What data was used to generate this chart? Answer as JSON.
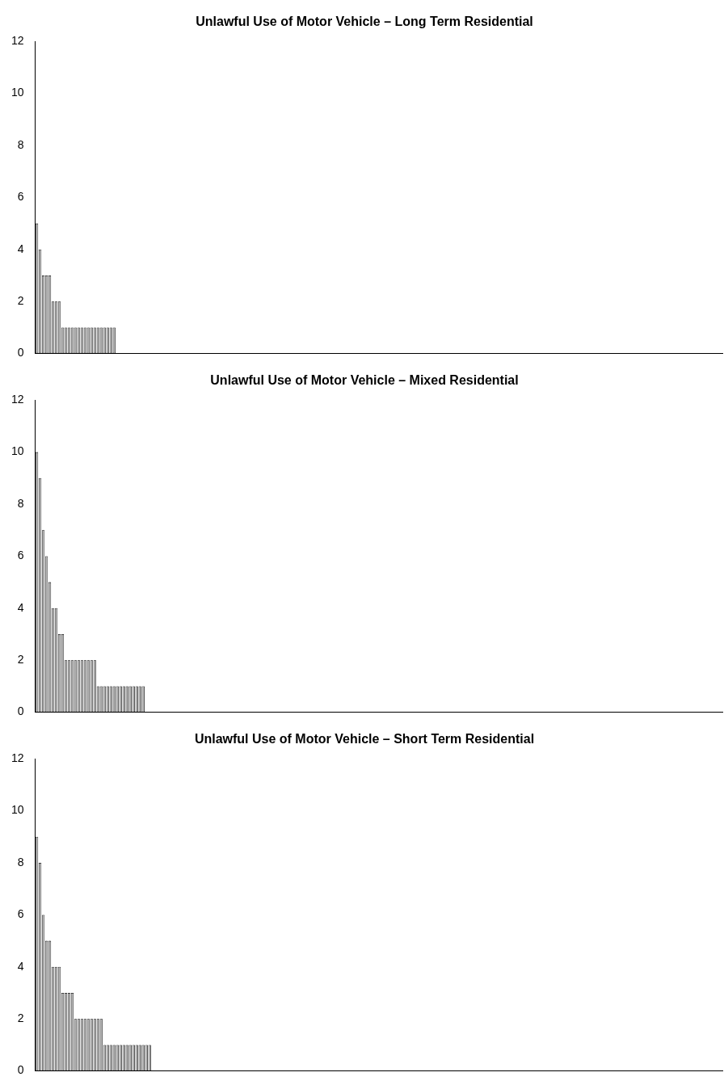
{
  "chart_data": [
    {
      "type": "bar",
      "title": "Unlawful Use of Motor Vehicle – Long Term Residential",
      "color": "#bebebe",
      "ylim": [
        0,
        12
      ],
      "yticks": [
        0,
        2,
        4,
        6,
        8,
        10,
        12
      ],
      "grid": false,
      "legend": false,
      "tick_labels": "y",
      "categories": [
        null,
        null,
        null,
        null,
        null,
        null,
        null,
        null,
        null,
        null,
        null,
        null,
        null,
        null,
        null,
        null,
        null,
        null,
        null,
        null,
        null,
        null,
        null,
        null,
        null,
        null,
        null,
        null,
        null,
        null,
        null,
        null,
        null,
        null,
        null,
        null,
        null,
        null,
        null,
        null,
        null,
        null,
        null,
        null,
        null,
        null,
        null,
        null,
        null,
        null,
        null,
        null,
        null,
        null,
        null,
        null,
        null,
        null,
        null,
        null,
        null,
        null,
        null,
        null,
        null,
        null,
        null,
        null,
        null,
        null,
        null,
        null,
        null,
        null,
        null,
        null,
        null,
        null,
        null,
        null,
        null,
        null,
        null,
        null,
        null,
        null,
        null,
        null,
        null,
        null,
        null,
        null,
        null,
        null,
        null,
        null,
        null,
        null,
        null,
        null,
        null,
        null,
        null,
        null,
        null,
        null,
        null,
        null,
        null,
        null,
        null,
        null,
        null,
        null,
        null,
        null,
        null,
        null,
        null,
        null,
        null,
        null,
        null,
        null,
        null,
        null,
        null,
        null,
        null,
        null,
        null,
        null,
        null,
        null,
        null,
        null,
        null,
        null,
        null,
        null,
        null,
        null,
        null,
        null,
        null,
        null,
        null,
        null,
        null,
        null,
        null,
        null,
        null,
        null,
        null,
        null,
        null,
        null,
        null,
        null,
        null,
        null,
        null,
        null,
        null,
        null,
        null,
        null,
        null,
        null,
        null,
        null,
        null,
        null,
        null,
        null,
        null,
        null,
        null,
        null,
        null,
        null,
        null,
        null,
        null,
        null,
        null,
        null,
        null,
        null,
        null,
        null,
        null,
        null,
        null,
        null,
        null,
        null,
        null,
        null,
        null,
        null,
        null,
        null,
        null,
        null,
        null,
        null,
        null,
        null,
        null,
        null,
        null
      ],
      "values": [
        5,
        4,
        3,
        3,
        3,
        2,
        2,
        2,
        1,
        1,
        1,
        1,
        1,
        1,
        1,
        1,
        1,
        1,
        1,
        1,
        1,
        1,
        1,
        1,
        1,
        0,
        0,
        0,
        0,
        0,
        0,
        0,
        0,
        0,
        0,
        0,
        0,
        0,
        0,
        0,
        0,
        0,
        0,
        0,
        0,
        0,
        0,
        0,
        0,
        0,
        0,
        0,
        0,
        0,
        0,
        0,
        0,
        0,
        0,
        0,
        0,
        0,
        0,
        0,
        0,
        0,
        0,
        0,
        0,
        0,
        0,
        0,
        0,
        0,
        0,
        0,
        0,
        0,
        0,
        0,
        0,
        0,
        0,
        0,
        0,
        0,
        0,
        0,
        0,
        0,
        0,
        0,
        0,
        0,
        0,
        0,
        0,
        0,
        0,
        0,
        0,
        0,
        0,
        0,
        0,
        0,
        0,
        0,
        0,
        0,
        0,
        0,
        0,
        0,
        0,
        0,
        0,
        0,
        0,
        0,
        0,
        0,
        0,
        0,
        0,
        0,
        0,
        0,
        0,
        0,
        0,
        0,
        0,
        0,
        0,
        0,
        0,
        0,
        0,
        0,
        0,
        0,
        0,
        0,
        0,
        0,
        0,
        0,
        0,
        0,
        0,
        0,
        0,
        0,
        0,
        0,
        0,
        0,
        0,
        0,
        0,
        0,
        0,
        0,
        0,
        0,
        0,
        0,
        0,
        0,
        0,
        0,
        0,
        0,
        0,
        0,
        0,
        0,
        0,
        0,
        0,
        0,
        0,
        0,
        0,
        0,
        0,
        0,
        0,
        0,
        0,
        0,
        0,
        0,
        0,
        0,
        0,
        0,
        0,
        0,
        0,
        0,
        0,
        0,
        0,
        0,
        0,
        0,
        0,
        0,
        0,
        0,
        0
      ]
    },
    {
      "type": "bar",
      "title": "Unlawful Use of Motor Vehicle – Mixed Residential",
      "color": "#bebebe",
      "ylim": [
        0,
        12
      ],
      "yticks": [
        0,
        2,
        4,
        6,
        8,
        10,
        12
      ],
      "grid": false,
      "legend": false,
      "tick_labels": "y",
      "categories": [
        null,
        null,
        null,
        null,
        null,
        null,
        null,
        null,
        null,
        null,
        null,
        null,
        null,
        null,
        null,
        null,
        null,
        null,
        null,
        null,
        null,
        null,
        null,
        null,
        null,
        null,
        null,
        null,
        null,
        null,
        null,
        null,
        null,
        null,
        null,
        null,
        null,
        null,
        null,
        null,
        null,
        null,
        null,
        null,
        null,
        null,
        null,
        null,
        null,
        null,
        null,
        null,
        null,
        null,
        null,
        null,
        null,
        null,
        null,
        null,
        null,
        null,
        null,
        null,
        null,
        null,
        null,
        null,
        null,
        null,
        null,
        null,
        null,
        null,
        null,
        null,
        null,
        null,
        null,
        null,
        null,
        null,
        null,
        null,
        null,
        null,
        null,
        null,
        null,
        null,
        null,
        null,
        null,
        null,
        null,
        null,
        null,
        null,
        null,
        null,
        null,
        null,
        null,
        null,
        null,
        null,
        null,
        null,
        null,
        null,
        null,
        null,
        null,
        null,
        null,
        null,
        null,
        null,
        null,
        null,
        null,
        null,
        null,
        null,
        null,
        null,
        null,
        null,
        null,
        null,
        null,
        null,
        null,
        null,
        null,
        null,
        null,
        null,
        null,
        null,
        null,
        null,
        null,
        null,
        null,
        null,
        null,
        null,
        null,
        null,
        null,
        null,
        null,
        null,
        null,
        null,
        null,
        null,
        null,
        null,
        null,
        null,
        null,
        null,
        null,
        null,
        null,
        null,
        null,
        null,
        null,
        null,
        null,
        null,
        null,
        null,
        null,
        null,
        null,
        null,
        null,
        null,
        null,
        null,
        null,
        null,
        null,
        null,
        null,
        null,
        null,
        null,
        null,
        null,
        null,
        null,
        null,
        null,
        null,
        null,
        null,
        null,
        null,
        null,
        null,
        null,
        null,
        null,
        null,
        null,
        null,
        null,
        null
      ],
      "values": [
        10,
        9,
        7,
        6,
        5,
        4,
        4,
        3,
        3,
        2,
        2,
        2,
        2,
        2,
        2,
        2,
        2,
        2,
        2,
        1,
        1,
        1,
        1,
        1,
        1,
        1,
        1,
        1,
        1,
        1,
        1,
        1,
        1,
        1,
        0,
        0,
        0,
        0,
        0,
        0,
        0,
        0,
        0,
        0,
        0,
        0,
        0,
        0,
        0,
        0,
        0,
        0,
        0,
        0,
        0,
        0,
        0,
        0,
        0,
        0,
        0,
        0,
        0,
        0,
        0,
        0,
        0,
        0,
        0,
        0,
        0,
        0,
        0,
        0,
        0,
        0,
        0,
        0,
        0,
        0,
        0,
        0,
        0,
        0,
        0,
        0,
        0,
        0,
        0,
        0,
        0,
        0,
        0,
        0,
        0,
        0,
        0,
        0,
        0,
        0,
        0,
        0,
        0,
        0,
        0,
        0,
        0,
        0,
        0,
        0,
        0,
        0,
        0,
        0,
        0,
        0,
        0,
        0,
        0,
        0,
        0,
        0,
        0,
        0,
        0,
        0,
        0,
        0,
        0,
        0,
        0,
        0,
        0,
        0,
        0,
        0,
        0,
        0,
        0,
        0,
        0,
        0,
        0,
        0,
        0,
        0,
        0,
        0,
        0,
        0,
        0,
        0,
        0,
        0,
        0,
        0,
        0,
        0,
        0,
        0,
        0,
        0,
        0,
        0,
        0,
        0,
        0,
        0,
        0,
        0,
        0,
        0,
        0,
        0,
        0,
        0,
        0,
        0,
        0,
        0,
        0,
        0,
        0,
        0,
        0,
        0,
        0,
        0,
        0,
        0,
        0,
        0,
        0,
        0,
        0,
        0,
        0,
        0,
        0,
        0,
        0,
        0,
        0,
        0,
        0,
        0,
        0,
        0,
        0,
        0,
        0,
        0,
        0
      ]
    },
    {
      "type": "bar",
      "title": "Unlawful Use of Motor Vehicle – Short Term Residential",
      "color": "#bebebe",
      "ylim": [
        0,
        12
      ],
      "yticks": [
        0,
        2,
        4,
        6,
        8,
        10,
        12
      ],
      "grid": false,
      "legend": false,
      "tick_labels": "y",
      "categories": [
        null,
        null,
        null,
        null,
        null,
        null,
        null,
        null,
        null,
        null,
        null,
        null,
        null,
        null,
        null,
        null,
        null,
        null,
        null,
        null,
        null,
        null,
        null,
        null,
        null,
        null,
        null,
        null,
        null,
        null,
        null,
        null,
        null,
        null,
        null,
        null,
        null,
        null,
        null,
        null,
        null,
        null,
        null,
        null,
        null,
        null,
        null,
        null,
        null,
        null,
        null,
        null,
        null,
        null,
        null,
        null,
        null,
        null,
        null,
        null,
        null,
        null,
        null,
        null,
        null,
        null,
        null,
        null,
        null,
        null,
        null,
        null,
        null,
        null,
        null,
        null,
        null,
        null,
        null,
        null,
        null,
        null,
        null,
        null,
        null,
        null,
        null,
        null,
        null,
        null,
        null,
        null,
        null,
        null,
        null,
        null,
        null,
        null,
        null,
        null,
        null,
        null,
        null,
        null,
        null,
        null,
        null,
        null,
        null,
        null,
        null,
        null,
        null,
        null,
        null,
        null,
        null,
        null,
        null,
        null,
        null,
        null,
        null,
        null,
        null,
        null,
        null,
        null,
        null,
        null,
        null,
        null,
        null,
        null,
        null,
        null,
        null,
        null,
        null,
        null,
        null,
        null,
        null,
        null,
        null,
        null,
        null,
        null,
        null,
        null,
        null,
        null,
        null,
        null,
        null,
        null,
        null,
        null,
        null,
        null,
        null,
        null,
        null,
        null,
        null,
        null,
        null,
        null,
        null,
        null,
        null,
        null,
        null,
        null,
        null,
        null,
        null,
        null,
        null,
        null,
        null,
        null,
        null,
        null,
        null,
        null,
        null,
        null,
        null,
        null,
        null,
        null,
        null,
        null,
        null,
        null,
        null,
        null,
        null,
        null,
        null,
        null,
        null,
        null,
        null,
        null,
        null,
        null,
        null,
        null,
        null,
        null,
        null
      ],
      "values": [
        9,
        8,
        6,
        5,
        5,
        4,
        4,
        4,
        3,
        3,
        3,
        3,
        2,
        2,
        2,
        2,
        2,
        2,
        2,
        2,
        2,
        1,
        1,
        1,
        1,
        1,
        1,
        1,
        1,
        1,
        1,
        1,
        1,
        1,
        1,
        1,
        0,
        0,
        0,
        0,
        0,
        0,
        0,
        0,
        0,
        0,
        0,
        0,
        0,
        0,
        0,
        0,
        0,
        0,
        0,
        0,
        0,
        0,
        0,
        0,
        0,
        0,
        0,
        0,
        0,
        0,
        0,
        0,
        0,
        0,
        0,
        0,
        0,
        0,
        0,
        0,
        0,
        0,
        0,
        0,
        0,
        0,
        0,
        0,
        0,
        0,
        0,
        0,
        0,
        0,
        0,
        0,
        0,
        0,
        0,
        0,
        0,
        0,
        0,
        0,
        0,
        0,
        0,
        0,
        0,
        0,
        0,
        0,
        0,
        0,
        0,
        0,
        0,
        0,
        0,
        0,
        0,
        0,
        0,
        0,
        0,
        0,
        0,
        0,
        0,
        0,
        0,
        0,
        0,
        0,
        0,
        0,
        0,
        0,
        0,
        0,
        0,
        0,
        0,
        0,
        0,
        0,
        0,
        0,
        0,
        0,
        0,
        0,
        0,
        0,
        0,
        0,
        0,
        0,
        0,
        0,
        0,
        0,
        0,
        0,
        0,
        0,
        0,
        0,
        0,
        0,
        0,
        0,
        0,
        0,
        0,
        0,
        0,
        0,
        0,
        0,
        0,
        0,
        0,
        0,
        0,
        0,
        0,
        0,
        0,
        0,
        0,
        0,
        0,
        0,
        0,
        0,
        0,
        0,
        0,
        0,
        0,
        0,
        0,
        0,
        0,
        0,
        0,
        0,
        0,
        0,
        0,
        0,
        0,
        0,
        0,
        0,
        0
      ]
    }
  ]
}
